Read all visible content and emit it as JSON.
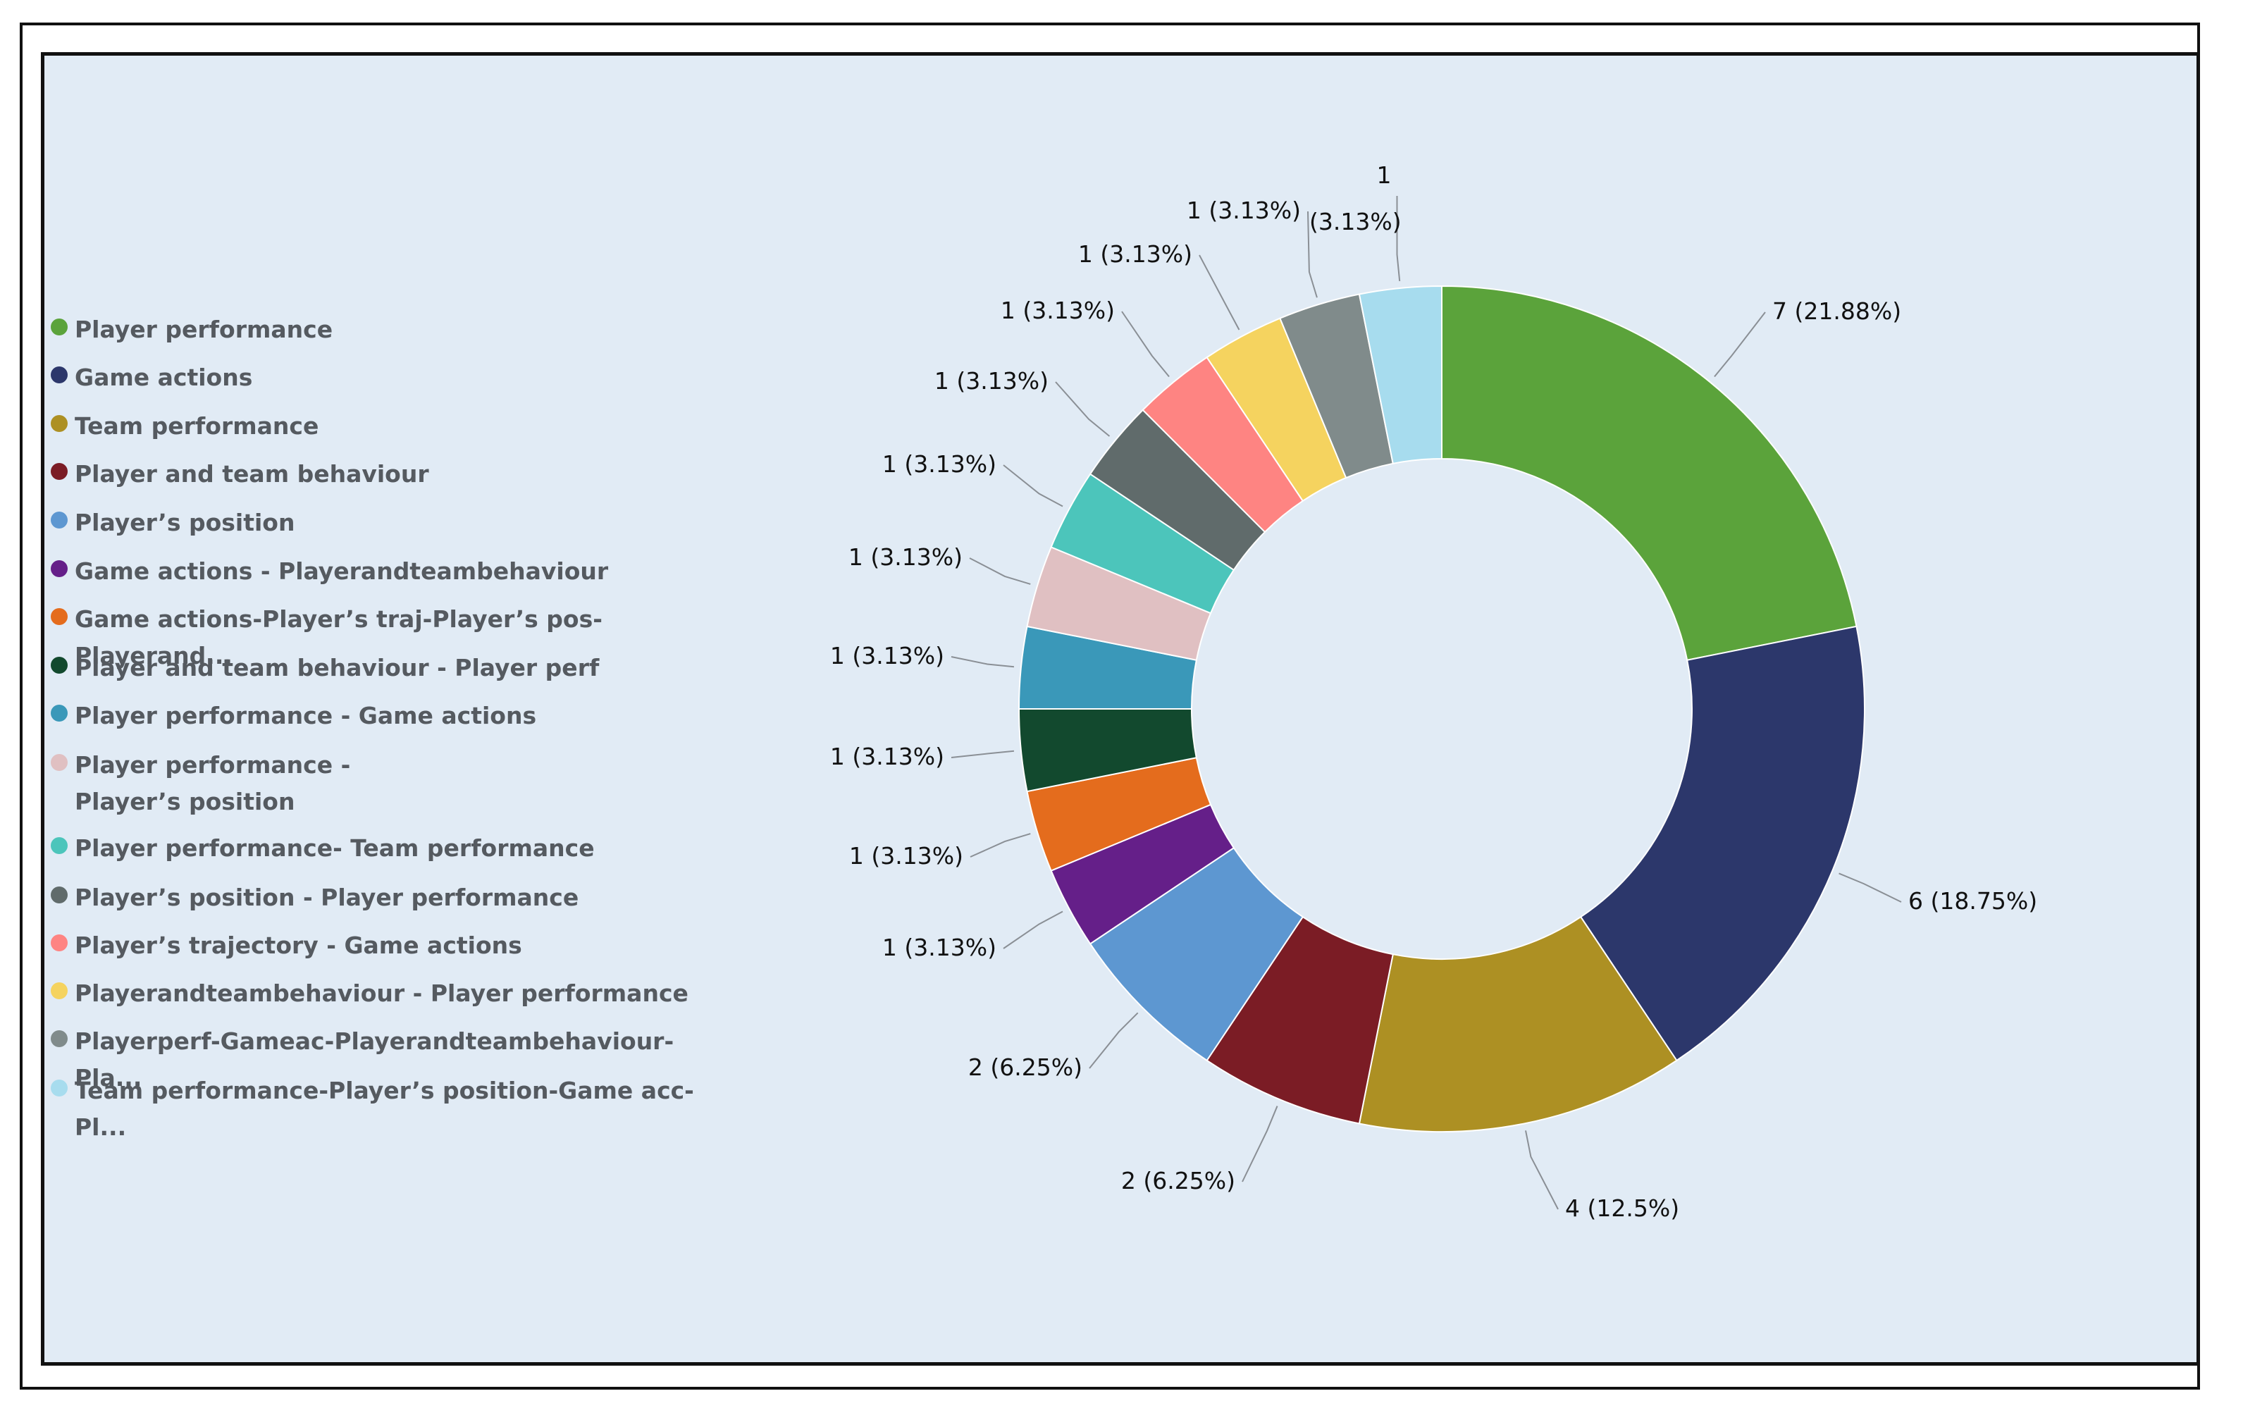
{
  "chart_data": {
    "type": "pie",
    "variant": "donut",
    "title": "",
    "legend_position": "left",
    "slices": [
      {
        "label": "Player performance",
        "value": 7,
        "display": "7 (21.88%)",
        "color": "#5ba33b"
      },
      {
        "label": "Game actions",
        "value": 6,
        "display": "6 (18.75%)",
        "color": "#2c376b"
      },
      {
        "label": "Team performance",
        "value": 4,
        "display": "4 (12.5%)",
        "color": "#ad9023"
      },
      {
        "label": "Player and team behaviour",
        "value": 2,
        "display": "2 (6.25%)",
        "color": "#7b1c25"
      },
      {
        "label": "Player’s position",
        "value": 2,
        "display": "2 (6.25%)",
        "color": "#5d97d1"
      },
      {
        "label": "Game actions - Playerandteambehaviour",
        "value": 1,
        "display": "1 (3.13%)",
        "color": "#651f89"
      },
      {
        "label": "Game actions-Player’s traj-Player’s pos-Playerand...",
        "value": 1,
        "display": "1 (3.13%)",
        "color": "#e46c1d"
      },
      {
        "label": "Player and team behaviour - Player perf",
        "value": 1,
        "display": "1 (3.13%)",
        "color": "#12492e"
      },
      {
        "label": "Player performance -  Game actions",
        "value": 1,
        "display": "1 (3.13%)",
        "color": "#3a98b9"
      },
      {
        "label": "Player performance -\nPlayer’s position",
        "value": 1,
        "display": "1 (3.13%)",
        "color": "#e0c0c2"
      },
      {
        "label": "Player performance- Team performance",
        "value": 1,
        "display": "1 (3.13%)",
        "color": "#4cc5bb"
      },
      {
        "label": "Player’s position - Player performance",
        "value": 1,
        "display": "1 (3.13%)",
        "color": "#606b6b"
      },
      {
        "label": "Player’s trajectory - Game actions",
        "value": 1,
        "display": "1 (3.13%)",
        "color": "#fe8482"
      },
      {
        "label": "Playerandteambehaviour - Player performance",
        "value": 1,
        "display": "1 (3.13%)",
        "color": "#f5d35f"
      },
      {
        "label": "Playerperf-Gameac-Playerandteambehaviour-Pla...",
        "value": 1,
        "display": "1 (3.13%)",
        "color": "#808b8b"
      },
      {
        "label": "Team performance-Player’s position-Game acc-Pl...",
        "value": 1,
        "display": "1",
        "display_extra": "(3.13%)",
        "color": "#a7dcee"
      }
    ]
  }
}
